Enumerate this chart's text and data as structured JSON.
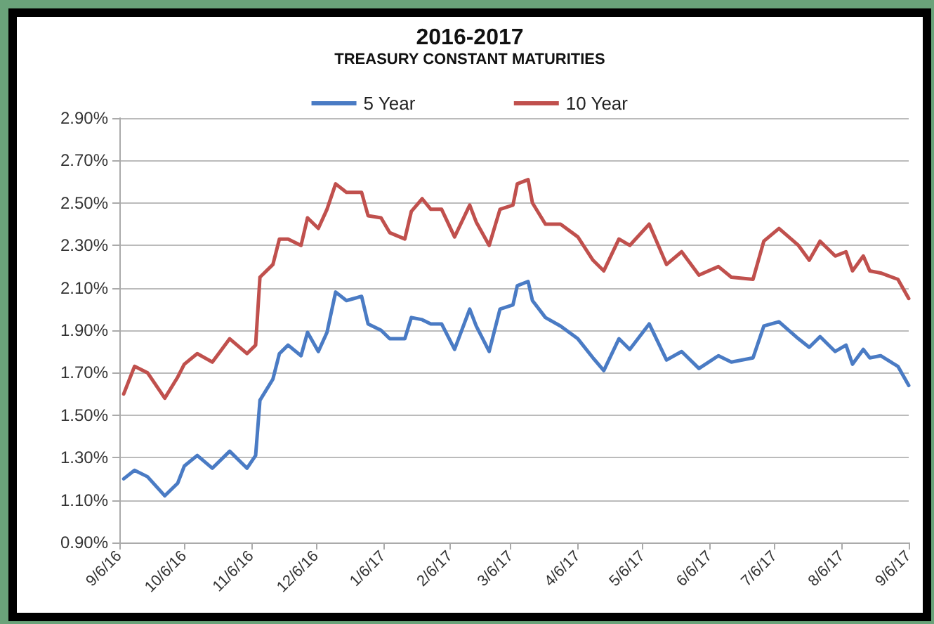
{
  "chart_data": {
    "type": "line",
    "title": "2016-2017",
    "subtitle": "TREASURY CONSTANT MATURITIES",
    "x": [
      "2016-09-08",
      "2016-09-13",
      "2016-09-19",
      "2016-09-27",
      "2016-10-03",
      "2016-10-06",
      "2016-10-12",
      "2016-10-19",
      "2016-10-27",
      "2016-11-04",
      "2016-11-08",
      "2016-11-10",
      "2016-11-16",
      "2016-11-19",
      "2016-11-23",
      "2016-11-29",
      "2016-12-02",
      "2016-12-07",
      "2016-12-11",
      "2016-12-15",
      "2016-12-20",
      "2016-12-27",
      "2016-12-30",
      "2017-01-05",
      "2017-01-09",
      "2017-01-16",
      "2017-01-19",
      "2017-01-24",
      "2017-01-28",
      "2017-02-02",
      "2017-02-08",
      "2017-02-15",
      "2017-02-18",
      "2017-02-24",
      "2017-03-01",
      "2017-03-07",
      "2017-03-09",
      "2017-03-14",
      "2017-03-16",
      "2017-03-22",
      "2017-03-29",
      "2017-04-06",
      "2017-04-13",
      "2017-04-18",
      "2017-04-25",
      "2017-04-30",
      "2017-05-09",
      "2017-05-17",
      "2017-05-24",
      "2017-06-01",
      "2017-06-10",
      "2017-06-16",
      "2017-06-26",
      "2017-07-01",
      "2017-07-08",
      "2017-07-17",
      "2017-07-22",
      "2017-07-27",
      "2017-08-03",
      "2017-08-08",
      "2017-08-11",
      "2017-08-16",
      "2017-08-19",
      "2017-08-24",
      "2017-09-01",
      "2017-09-06"
    ],
    "series": [
      {
        "name": "5 Year",
        "color": "#4a7bc4",
        "values": [
          1.2,
          1.24,
          1.21,
          1.12,
          1.18,
          1.26,
          1.31,
          1.25,
          1.33,
          1.25,
          1.31,
          1.57,
          1.67,
          1.79,
          1.83,
          1.78,
          1.89,
          1.8,
          1.89,
          2.08,
          2.04,
          2.06,
          1.93,
          1.9,
          1.86,
          1.86,
          1.96,
          1.95,
          1.93,
          1.93,
          1.81,
          2.0,
          1.92,
          1.8,
          2.0,
          2.02,
          2.11,
          2.13,
          2.04,
          1.96,
          1.92,
          1.86,
          1.77,
          1.71,
          1.86,
          1.81,
          1.93,
          1.76,
          1.8,
          1.72,
          1.78,
          1.75,
          1.77,
          1.92,
          1.94,
          1.86,
          1.82,
          1.87,
          1.8,
          1.83,
          1.74,
          1.81,
          1.77,
          1.78,
          1.73,
          1.64
        ]
      },
      {
        "name": "10 Year",
        "color": "#c0504d",
        "values": [
          1.6,
          1.73,
          1.7,
          1.58,
          1.68,
          1.74,
          1.79,
          1.75,
          1.86,
          1.79,
          1.83,
          2.15,
          2.21,
          2.33,
          2.33,
          2.3,
          2.43,
          2.38,
          2.47,
          2.59,
          2.55,
          2.55,
          2.44,
          2.43,
          2.36,
          2.33,
          2.46,
          2.52,
          2.47,
          2.47,
          2.34,
          2.49,
          2.41,
          2.3,
          2.47,
          2.49,
          2.59,
          2.61,
          2.5,
          2.4,
          2.4,
          2.34,
          2.23,
          2.18,
          2.33,
          2.3,
          2.4,
          2.21,
          2.27,
          2.16,
          2.2,
          2.15,
          2.14,
          2.32,
          2.38,
          2.3,
          2.23,
          2.32,
          2.25,
          2.27,
          2.18,
          2.25,
          2.18,
          2.17,
          2.14,
          2.05
        ]
      }
    ],
    "xlim": [
      "2016-09-06",
      "2017-09-06"
    ],
    "xticks": [
      {
        "value": "2016-09-06",
        "label": "9/6/16"
      },
      {
        "value": "2016-10-06",
        "label": "10/6/16"
      },
      {
        "value": "2016-11-06",
        "label": "11/6/16"
      },
      {
        "value": "2016-12-06",
        "label": "12/6/16"
      },
      {
        "value": "2017-01-06",
        "label": "1/6/17"
      },
      {
        "value": "2017-02-06",
        "label": "2/6/17"
      },
      {
        "value": "2017-03-06",
        "label": "3/6/17"
      },
      {
        "value": "2017-04-06",
        "label": "4/6/17"
      },
      {
        "value": "2017-05-06",
        "label": "5/6/17"
      },
      {
        "value": "2017-06-06",
        "label": "6/6/17"
      },
      {
        "value": "2017-07-06",
        "label": "7/6/17"
      },
      {
        "value": "2017-08-06",
        "label": "8/6/17"
      },
      {
        "value": "2017-09-06",
        "label": "9/6/17"
      }
    ],
    "ylim": [
      0.9,
      2.9
    ],
    "yticks": [
      {
        "value": 0.9,
        "label": "0.90%"
      },
      {
        "value": 1.1,
        "label": "1.10%"
      },
      {
        "value": 1.3,
        "label": "1.30%"
      },
      {
        "value": 1.5,
        "label": "1.50%"
      },
      {
        "value": 1.7,
        "label": "1.70%"
      },
      {
        "value": 1.9,
        "label": "1.90%"
      },
      {
        "value": 2.1,
        "label": "2.10%"
      },
      {
        "value": 2.3,
        "label": "2.30%"
      },
      {
        "value": 2.5,
        "label": "2.50%"
      },
      {
        "value": 2.7,
        "label": "2.70%"
      },
      {
        "value": 2.9,
        "label": "2.90%"
      }
    ],
    "grid": "y",
    "legend": "top",
    "marker": "none",
    "line_style": "solid"
  }
}
